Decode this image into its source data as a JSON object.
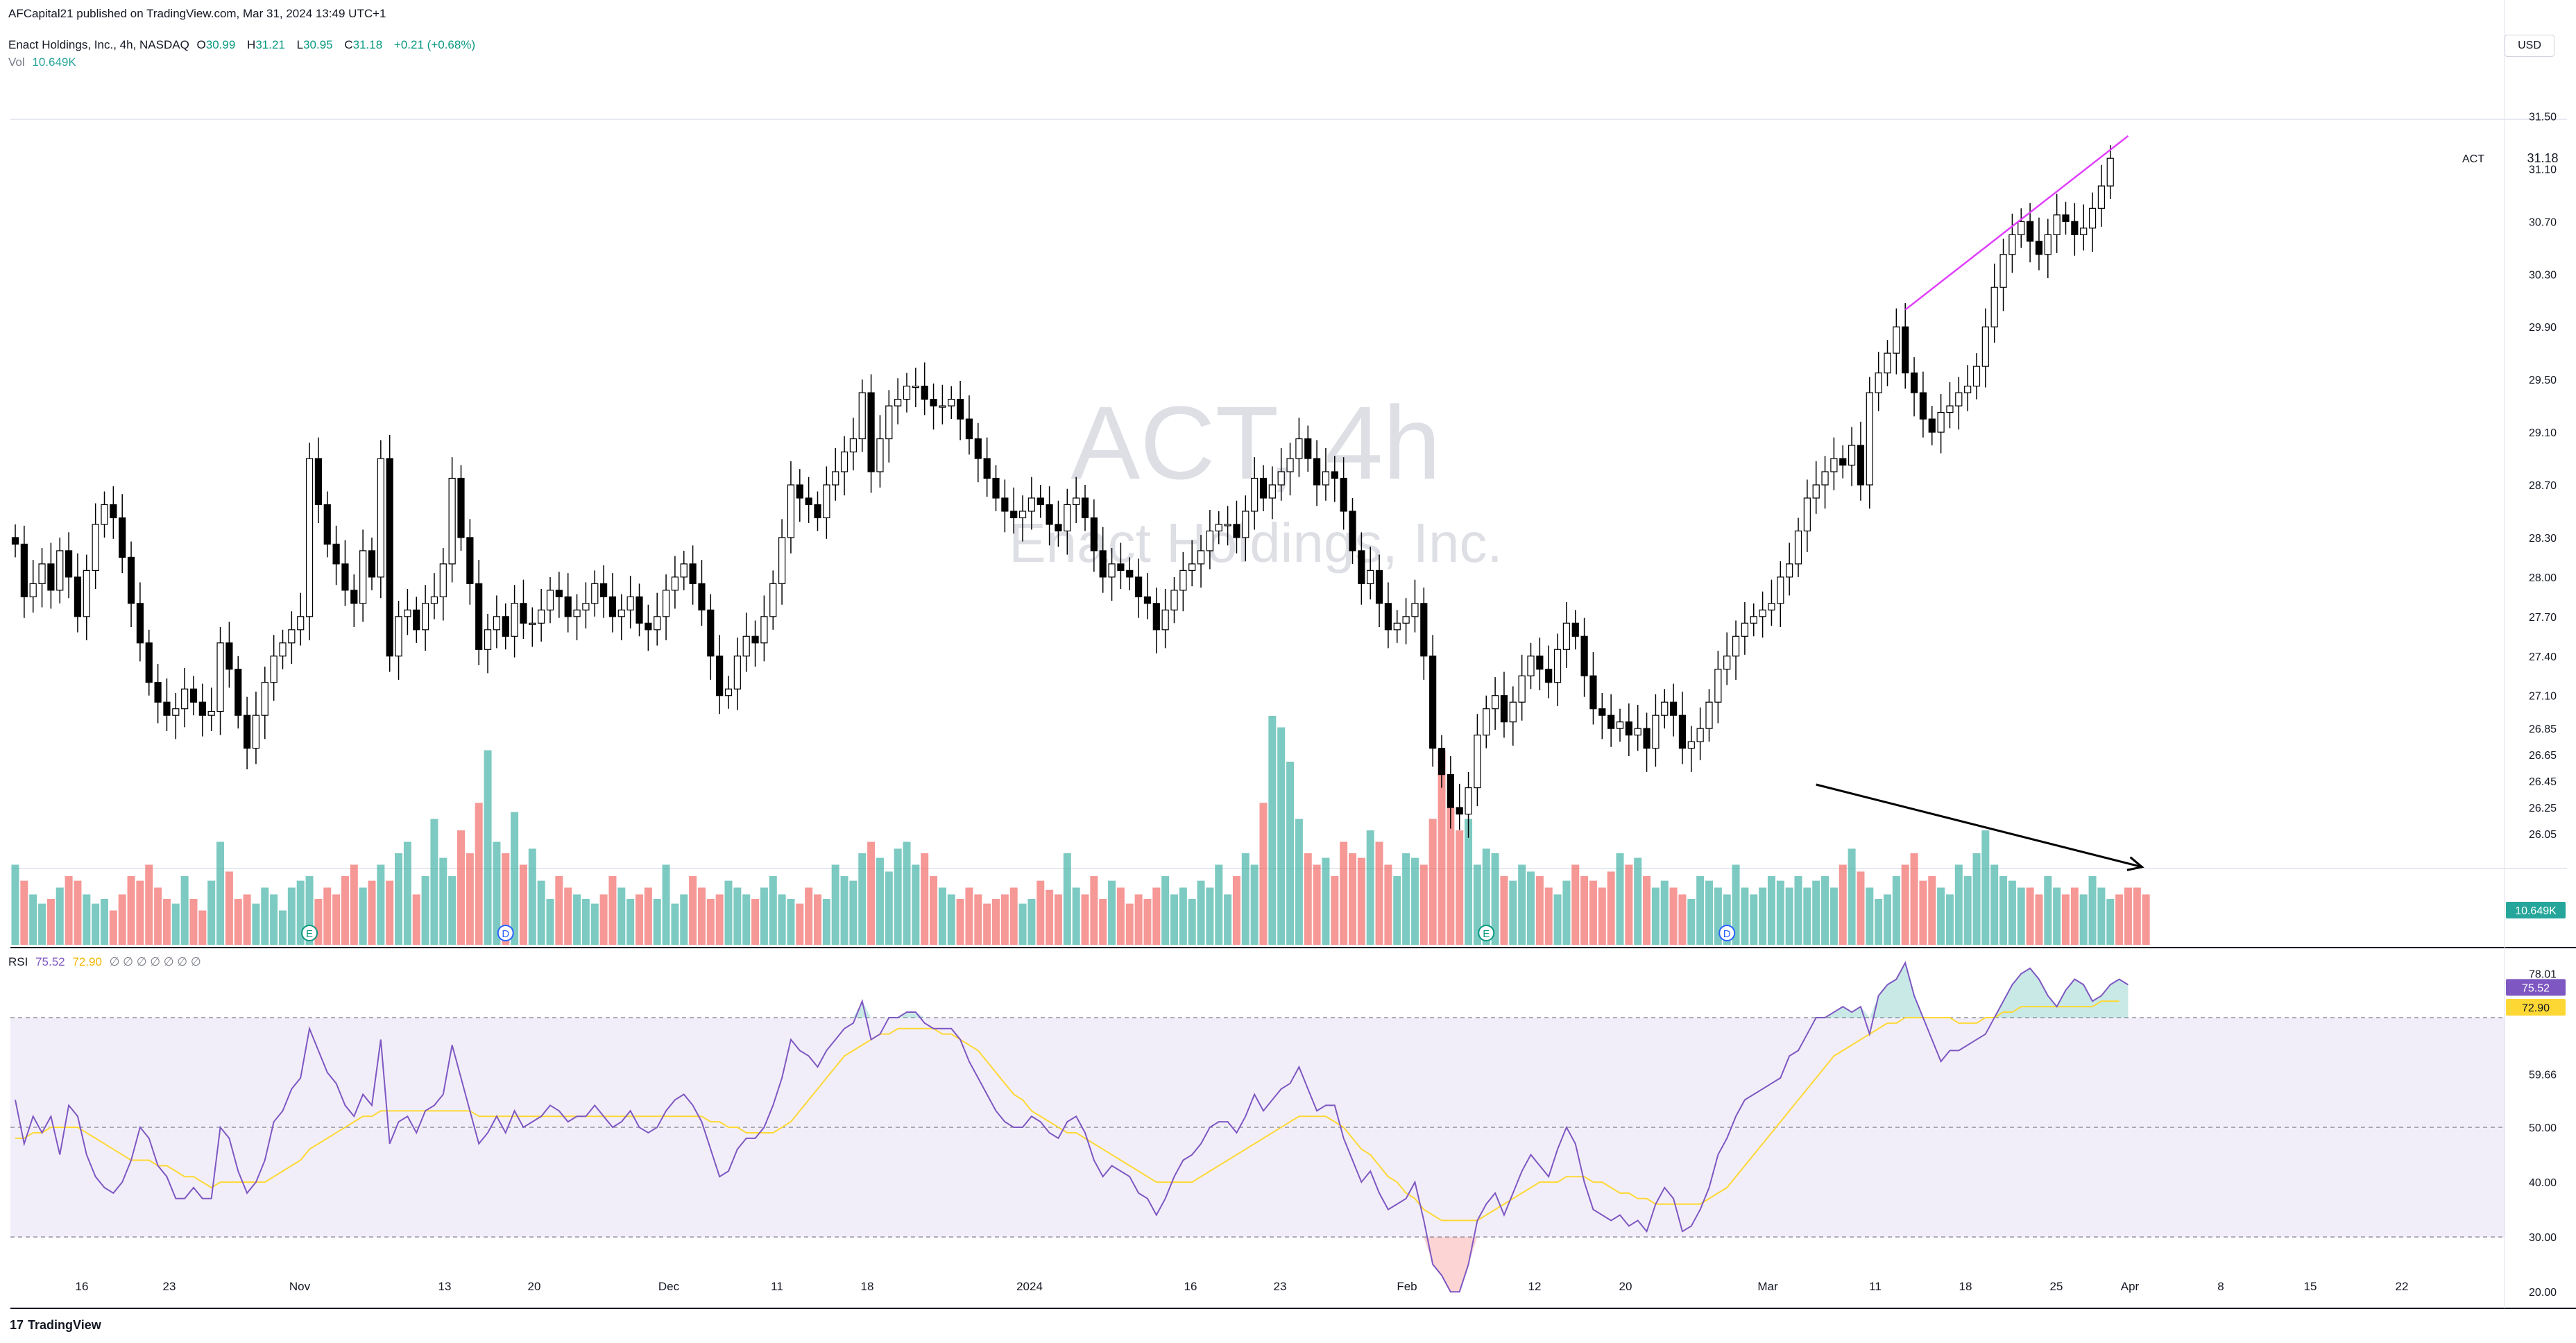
{
  "header": {
    "published_line": "AFCapital21 published on TradingView.com, Mar 31, 2024 13:49 UTC+1",
    "symbol_desc": "Enact Holdings, Inc., 4h, NASDAQ",
    "ohlc_o_label": "O",
    "ohlc_o": "30.99",
    "ohlc_h_label": "H",
    "ohlc_h": "31.21",
    "ohlc_l_label": "L",
    "ohlc_l": "30.95",
    "ohlc_c_label": "C",
    "ohlc_c": "31.18",
    "change": "+0.21 (+0.68%)",
    "vol_label": "Vol",
    "vol_value": "10.649K",
    "rsi_label": "RSI",
    "rsi_value": "75.52",
    "rsi_ma_value": "72.90",
    "rsi_placeholders": "∅ ∅ ∅ ∅ ∅ ∅ ∅"
  },
  "currency_button": "USD",
  "watermark": {
    "ticker": "ACT, 4h",
    "name": "Enact Holdings, Inc."
  },
  "footer": {
    "logo_glyph": "17",
    "brand": "TradingView"
  },
  "colors": {
    "up": "#ffffff",
    "down": "#000000",
    "wick": "#000000",
    "vol_up": "#26a69a",
    "vol_down": "#ef5350",
    "rsi_line": "#7e57c2",
    "rsi_ma": "#fdd835",
    "rsi_band": "#7e57c2",
    "trendline": "#e040fb",
    "arrow": "#000000",
    "grid": "#e0e3eb"
  },
  "chart_data": [
    {
      "type": "candlestick",
      "title": "Enact Holdings, Inc., 4h, NASDAQ",
      "ylim": [
        25.85,
        31.75
      ],
      "y_ticks": [
        "31.50",
        "31.10",
        "30.70",
        "30.30",
        "29.90",
        "29.50",
        "29.10",
        "28.70",
        "28.30",
        "28.00",
        "27.70",
        "27.40",
        "27.10",
        "26.85",
        "26.65",
        "26.45",
        "26.25",
        "26.05"
      ],
      "x_ticks": [
        "16",
        "23",
        "Nov",
        "13",
        "20",
        "Dec",
        "11",
        "18",
        "2024",
        "16",
        "23",
        "Feb",
        "12",
        "20",
        "Mar",
        "11",
        "18",
        "25",
        "Apr",
        "8",
        "15",
        "22"
      ],
      "last_price_label": "ACT",
      "last_price": "31.18",
      "volume_last": "10.649K",
      "event_markers": [
        {
          "label": "E",
          "bar": 33
        },
        {
          "label": "D",
          "bar": 55
        },
        {
          "label": "E",
          "bar": 165
        },
        {
          "label": "D",
          "bar": 192
        }
      ],
      "trendline": {
        "from_bar": 212,
        "from_price": 30.03,
        "to_bar": 237,
        "to_price": 31.35
      },
      "volume_arrow": {
        "from_bar": 202,
        "from_level": 0.7,
        "to_bar": 237,
        "to_level": 0.34
      },
      "closes": [
        28.25,
        27.85,
        27.95,
        28.1,
        27.9,
        28.2,
        28.0,
        27.7,
        28.05,
        28.4,
        28.55,
        28.45,
        28.15,
        27.8,
        27.5,
        27.2,
        27.05,
        26.95,
        27.0,
        27.15,
        27.05,
        26.95,
        26.98,
        27.5,
        27.3,
        26.95,
        26.7,
        26.95,
        27.2,
        27.4,
        27.5,
        27.6,
        27.7,
        28.9,
        28.55,
        28.25,
        28.1,
        27.9,
        27.8,
        28.2,
        28.0,
        28.9,
        27.4,
        27.7,
        27.75,
        27.6,
        27.8,
        27.85,
        28.1,
        28.75,
        28.3,
        27.95,
        27.45,
        27.6,
        27.7,
        27.55,
        27.8,
        27.65,
        27.65,
        27.75,
        27.9,
        27.85,
        27.7,
        27.75,
        27.8,
        27.95,
        27.85,
        27.7,
        27.75,
        27.85,
        27.65,
        27.6,
        27.7,
        27.9,
        28.0,
        28.1,
        27.95,
        27.75,
        27.4,
        27.1,
        27.15,
        27.4,
        27.55,
        27.5,
        27.7,
        27.95,
        28.3,
        28.7,
        28.6,
        28.55,
        28.45,
        28.7,
        28.8,
        28.95,
        29.05,
        29.4,
        28.8,
        29.05,
        29.3,
        29.35,
        29.45,
        29.45,
        29.35,
        29.3,
        29.3,
        29.35,
        29.2,
        29.05,
        28.9,
        28.75,
        28.6,
        28.5,
        28.45,
        28.5,
        28.6,
        28.55,
        28.4,
        28.35,
        28.55,
        28.6,
        28.45,
        28.2,
        28.0,
        28.1,
        28.05,
        28.0,
        27.85,
        27.8,
        27.6,
        27.75,
        27.9,
        28.05,
        28.1,
        28.2,
        28.35,
        28.4,
        28.4,
        28.3,
        28.5,
        28.75,
        28.6,
        28.7,
        28.8,
        28.9,
        29.05,
        28.9,
        28.7,
        28.8,
        28.75,
        28.5,
        28.2,
        27.95,
        28.05,
        27.8,
        27.6,
        27.65,
        27.7,
        27.8,
        27.4,
        26.7,
        26.5,
        26.25,
        26.2,
        26.4,
        26.8,
        27.0,
        27.1,
        26.9,
        27.05,
        27.25,
        27.4,
        27.3,
        27.2,
        27.45,
        27.65,
        27.55,
        27.25,
        27.0,
        26.95,
        26.85,
        26.9,
        26.8,
        26.85,
        26.7,
        26.95,
        27.05,
        26.95,
        26.7,
        26.75,
        26.85,
        27.05,
        27.3,
        27.4,
        27.55,
        27.65,
        27.7,
        27.75,
        27.8,
        28.0,
        28.1,
        28.35,
        28.6,
        28.7,
        28.8,
        28.9,
        28.85,
        29.0,
        28.7,
        29.4,
        29.55,
        29.7,
        29.9,
        29.55,
        29.4,
        29.2,
        29.1,
        29.25,
        29.3,
        29.4,
        29.45,
        29.6,
        29.9,
        30.2,
        30.45,
        30.6,
        30.7,
        30.55,
        30.45,
        30.6,
        30.75,
        30.7,
        30.6,
        30.65,
        30.8,
        30.97,
        31.18
      ],
      "volume": [
        0.35,
        0.28,
        0.22,
        0.18,
        0.2,
        0.25,
        0.3,
        0.28,
        0.22,
        0.18,
        0.2,
        0.15,
        0.22,
        0.3,
        0.28,
        0.35,
        0.25,
        0.2,
        0.18,
        0.3,
        0.2,
        0.15,
        0.28,
        0.45,
        0.32,
        0.2,
        0.22,
        0.18,
        0.25,
        0.22,
        0.15,
        0.25,
        0.28,
        0.3,
        0.2,
        0.25,
        0.22,
        0.3,
        0.35,
        0.25,
        0.28,
        0.35,
        0.28,
        0.4,
        0.45,
        0.22,
        0.3,
        0.55,
        0.38,
        0.3,
        0.5,
        0.4,
        0.62,
        0.85,
        0.45,
        0.4,
        0.58,
        0.35,
        0.42,
        0.28,
        0.2,
        0.3,
        0.25,
        0.22,
        0.2,
        0.18,
        0.22,
        0.3,
        0.25,
        0.2,
        0.22,
        0.25,
        0.2,
        0.35,
        0.18,
        0.22,
        0.3,
        0.25,
        0.2,
        0.22,
        0.28,
        0.25,
        0.22,
        0.2,
        0.25,
        0.3,
        0.22,
        0.2,
        0.18,
        0.25,
        0.22,
        0.2,
        0.35,
        0.3,
        0.28,
        0.4,
        0.45,
        0.38,
        0.32,
        0.42,
        0.45,
        0.35,
        0.4,
        0.3,
        0.25,
        0.22,
        0.2,
        0.25,
        0.22,
        0.18,
        0.2,
        0.22,
        0.25,
        0.18,
        0.2,
        0.28,
        0.24,
        0.22,
        0.4,
        0.25,
        0.22,
        0.3,
        0.2,
        0.28,
        0.25,
        0.18,
        0.22,
        0.2,
        0.25,
        0.3,
        0.22,
        0.25,
        0.2,
        0.28,
        0.25,
        0.35,
        0.22,
        0.3,
        0.4,
        0.35,
        0.62,
        1.0,
        0.95,
        0.8,
        0.55,
        0.4,
        0.35,
        0.38,
        0.3,
        0.45,
        0.4,
        0.38,
        0.5,
        0.45,
        0.35,
        0.3,
        0.4,
        0.38,
        0.35,
        0.55,
        0.85,
        0.6,
        0.5,
        0.55,
        0.35,
        0.42,
        0.4,
        0.3,
        0.28,
        0.35,
        0.32,
        0.3,
        0.25,
        0.22,
        0.28,
        0.35,
        0.3,
        0.28,
        0.25,
        0.32,
        0.4,
        0.35,
        0.38,
        0.3,
        0.25,
        0.28,
        0.25,
        0.22,
        0.2,
        0.3,
        0.28,
        0.25,
        0.22,
        0.35,
        0.25,
        0.22,
        0.25,
        0.3,
        0.28,
        0.25,
        0.3,
        0.25,
        0.28,
        0.3,
        0.25,
        0.35,
        0.42,
        0.32,
        0.25,
        0.2,
        0.22,
        0.3,
        0.35,
        0.4,
        0.28,
        0.3,
        0.25,
        0.22,
        0.35,
        0.3,
        0.4,
        0.5,
        0.35,
        0.3,
        0.28,
        0.25,
        0.25,
        0.22,
        0.3,
        0.25,
        0.22,
        0.25,
        0.22,
        0.3,
        0.25,
        0.2,
        0.22,
        0.25,
        0.25,
        0.22
      ]
    },
    {
      "type": "line",
      "title": "RSI",
      "ylim": [
        18,
        81
      ],
      "y_ticks": [
        "78.01",
        "59.66",
        "50.00",
        "40.00",
        "30.00",
        "20.00"
      ],
      "band": [
        30,
        70
      ],
      "levels": [
        30,
        50,
        70
      ],
      "current_labels": [
        "75.52",
        "72.90"
      ],
      "series": [
        {
          "name": "RSI",
          "values": [
            55,
            47,
            52,
            49,
            52,
            45,
            54,
            52,
            45,
            41,
            39,
            38,
            40,
            44,
            50,
            48,
            43,
            41,
            37,
            37,
            39,
            37,
            37,
            50,
            48,
            42,
            38,
            40,
            44,
            51,
            53,
            57,
            59,
            68,
            64,
            60,
            58,
            54,
            52,
            56,
            54,
            66,
            47,
            51,
            52,
            49,
            53,
            54,
            56,
            65,
            59,
            53,
            47,
            49,
            52,
            49,
            53,
            50,
            51,
            52,
            54,
            53,
            51,
            52,
            52,
            54,
            52,
            50,
            51,
            53,
            50,
            49,
            50,
            53,
            55,
            56,
            54,
            51,
            46,
            41,
            42,
            46,
            48,
            48,
            50,
            54,
            59,
            66,
            64,
            63,
            61,
            64,
            66,
            68,
            69,
            73,
            66,
            67,
            70,
            70,
            71,
            71,
            69,
            68,
            68,
            68,
            66,
            62,
            59,
            56,
            53,
            51,
            50,
            50,
            52,
            51,
            49,
            48,
            51,
            52,
            49,
            44,
            41,
            43,
            42,
            41,
            38,
            37,
            34,
            37,
            41,
            44,
            45,
            47,
            50,
            51,
            51,
            49,
            52,
            56,
            53,
            55,
            57,
            58,
            61,
            57,
            53,
            54,
            54,
            48,
            44,
            40,
            42,
            38,
            35,
            36,
            37,
            40,
            33,
            25,
            23,
            20,
            20,
            25,
            33,
            36,
            38,
            34,
            38,
            42,
            45,
            43,
            41,
            46,
            50,
            47,
            40,
            35,
            34,
            33,
            34,
            32,
            33,
            31,
            36,
            39,
            37,
            31,
            32,
            35,
            39,
            45,
            48,
            52,
            55,
            56,
            57,
            58,
            59,
            63,
            64,
            67,
            70,
            70,
            71,
            72,
            71,
            72,
            67,
            74,
            76,
            77,
            80,
            74,
            70,
            66,
            62,
            64,
            64,
            65,
            66,
            67,
            70,
            73,
            76,
            78,
            79,
            77,
            74,
            72,
            75,
            77,
            76,
            73,
            74,
            76,
            77,
            76
          ]
        },
        {
          "name": "RSI-based MA",
          "values": [
            48,
            48,
            49,
            49,
            50,
            50,
            50,
            50,
            49,
            48,
            47,
            46,
            45,
            44,
            44,
            44,
            43,
            43,
            42,
            41,
            41,
            40,
            39,
            40,
            40,
            40,
            40,
            40,
            40,
            41,
            42,
            43,
            44,
            46,
            47,
            48,
            49,
            50,
            51,
            52,
            52,
            53,
            53,
            53,
            53,
            53,
            53,
            53,
            53,
            53,
            53,
            53,
            52,
            52,
            52,
            52,
            52,
            52,
            52,
            52,
            52,
            52,
            52,
            52,
            52,
            52,
            52,
            52,
            52,
            52,
            52,
            52,
            52,
            52,
            52,
            52,
            52,
            52,
            51,
            51,
            50,
            50,
            49,
            49,
            49,
            49,
            50,
            51,
            53,
            55,
            57,
            59,
            61,
            63,
            64,
            65,
            66,
            67,
            67,
            68,
            68,
            68,
            68,
            68,
            67,
            67,
            66,
            65,
            64,
            62,
            60,
            58,
            56,
            55,
            53,
            52,
            51,
            50,
            49,
            49,
            48,
            47,
            46,
            45,
            44,
            43,
            42,
            41,
            40,
            40,
            40,
            40,
            40,
            41,
            42,
            43,
            44,
            45,
            46,
            47,
            48,
            49,
            50,
            51,
            52,
            52,
            52,
            52,
            51,
            50,
            48,
            46,
            45,
            43,
            41,
            40,
            38,
            37,
            35,
            34,
            33,
            33,
            33,
            33,
            33,
            34,
            35,
            36,
            37,
            38,
            39,
            40,
            40,
            40,
            41,
            41,
            41,
            40,
            40,
            39,
            38,
            38,
            37,
            37,
            36,
            36,
            36,
            36,
            36,
            36,
            37,
            38,
            39,
            41,
            43,
            45,
            47,
            49,
            51,
            53,
            55,
            57,
            59,
            61,
            63,
            64,
            65,
            66,
            67,
            68,
            69,
            69,
            70,
            70,
            70,
            70,
            70,
            70,
            69,
            69,
            69,
            70,
            70,
            71,
            71,
            72,
            72,
            72,
            72,
            72,
            72,
            72,
            72,
            72,
            73,
            73,
            73
          ]
        }
      ]
    }
  ]
}
